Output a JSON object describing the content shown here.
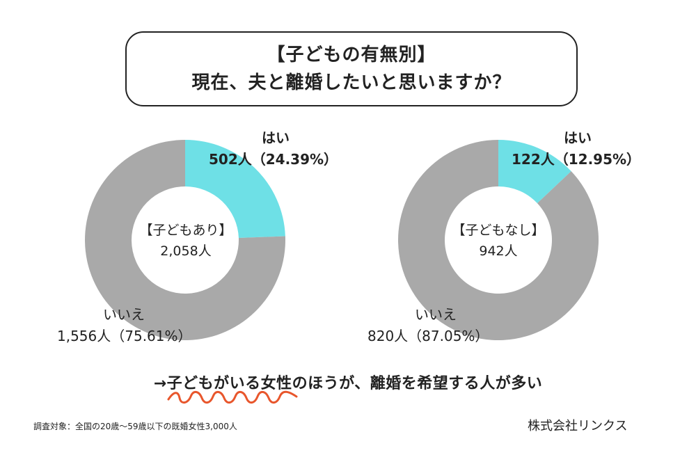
{
  "header": {
    "line1": "【子どもの有無別】",
    "line2": "現在、夫と離婚したいと思いますか？"
  },
  "colors": {
    "yes": "#6ee0e6",
    "no": "#a9a9a9"
  },
  "chart_data": [
    {
      "type": "pie",
      "group": "【子どもあり】",
      "total": "2,058人",
      "slices": [
        {
          "label": "はい",
          "count": 502,
          "count_text": "502人（24.39%）",
          "percent": 24.39
        },
        {
          "label": "いいえ",
          "count": 1556,
          "count_text": "1,556人（75.61%）",
          "percent": 75.61
        }
      ]
    },
    {
      "type": "pie",
      "group": "【子どもなし】",
      "total": "942人",
      "slices": [
        {
          "label": "はい",
          "count": 122,
          "count_text": "122人（12.95%）",
          "percent": 12.95
        },
        {
          "label": "いいえ",
          "count": 820,
          "count_text": "820人（87.05%）",
          "percent": 87.05
        }
      ]
    }
  ],
  "conclusion": "→子どもがいる女性のほうが、離婚を希望する人が多い",
  "footnote": "調査対象：全国の20歳〜59歳以下の既婚女性3,000人",
  "company": "株式会社リンクス"
}
